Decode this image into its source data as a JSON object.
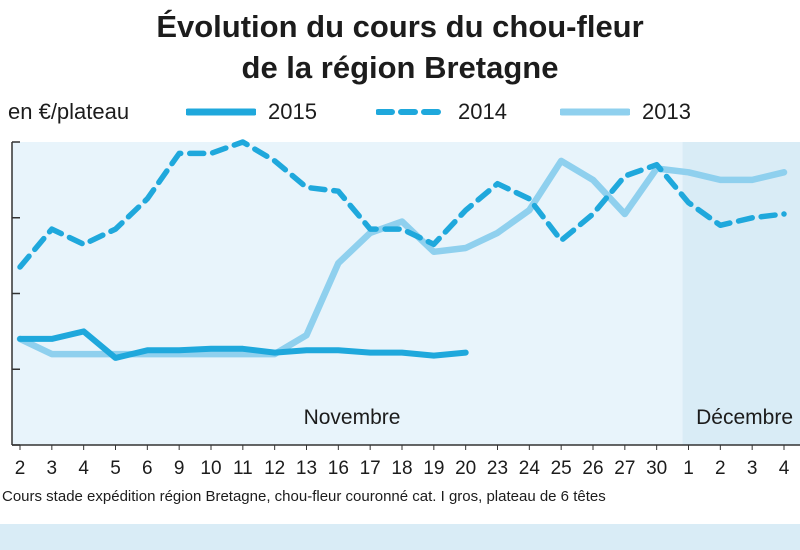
{
  "chart_data": {
    "type": "line",
    "title_line1": "Évolution du cours du chou-fleur",
    "title_line2": "de la région Bretagne",
    "ylabel": "en €/plateau",
    "categories": [
      "2",
      "3",
      "4",
      "5",
      "6",
      "9",
      "10",
      "11",
      "12",
      "13",
      "16",
      "17",
      "18",
      "19",
      "20",
      "23",
      "24",
      "25",
      "26",
      "27",
      "30",
      "1",
      "2",
      "3",
      "4"
    ],
    "month_labels": [
      "Novembre",
      "Décembre"
    ],
    "ylim": [
      0,
      4
    ],
    "grid": false,
    "legend_position": "top",
    "series": [
      {
        "name": "2015",
        "style": "solid-thick",
        "color": "#1fa8dc",
        "values": [
          1.4,
          1.4,
          1.5,
          1.15,
          1.25,
          1.25,
          1.27,
          1.27,
          1.22,
          1.25,
          1.25,
          1.22,
          1.22,
          1.18,
          1.22,
          null,
          null,
          null,
          null,
          null,
          null,
          null,
          null,
          null,
          null
        ]
      },
      {
        "name": "2014",
        "style": "dashed",
        "color": "#1fa8dc",
        "values": [
          2.35,
          2.85,
          2.65,
          2.85,
          3.25,
          3.85,
          3.85,
          4.0,
          3.75,
          3.4,
          3.35,
          2.85,
          2.85,
          2.65,
          3.1,
          3.45,
          3.25,
          2.7,
          3.05,
          3.55,
          3.7,
          3.2,
          2.9,
          3.0,
          3.05
        ]
      },
      {
        "name": "2013",
        "style": "solid-light",
        "color": "#8fd0ee",
        "values": [
          1.4,
          1.2,
          1.2,
          1.2,
          1.2,
          1.2,
          1.2,
          1.2,
          1.2,
          1.45,
          2.4,
          2.8,
          2.95,
          2.55,
          2.6,
          2.8,
          3.1,
          3.75,
          3.5,
          3.05,
          3.65,
          3.6,
          3.5,
          3.5,
          3.6
        ]
      }
    ],
    "source": "Cours stade expédition région Bretagne, chou-fleur couronné cat. I gros, plateau de 6 têtes"
  },
  "colors": {
    "plot_background": "#e8f4fb",
    "december_shade": "#d9ecf6",
    "axis": "#333333"
  }
}
